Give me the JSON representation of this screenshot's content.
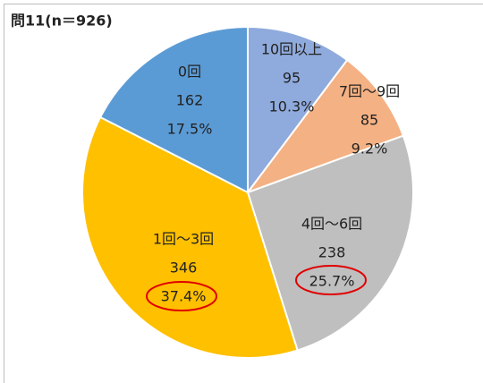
{
  "chart_data": {
    "type": "pie",
    "title": "問11(n＝926)",
    "categories": [
      "10回以上",
      "7回～9回",
      "4回～6回",
      "1回～3回",
      "0回"
    ],
    "values": [
      95,
      85,
      238,
      346,
      162
    ],
    "percent_labels": [
      "10.3%",
      "9.2%",
      "25.7%",
      "37.4%",
      "17.5%"
    ],
    "colors": [
      "#8faadc",
      "#f4b183",
      "#bfbfbf",
      "#ffc000",
      "#5b9bd5"
    ]
  }
}
